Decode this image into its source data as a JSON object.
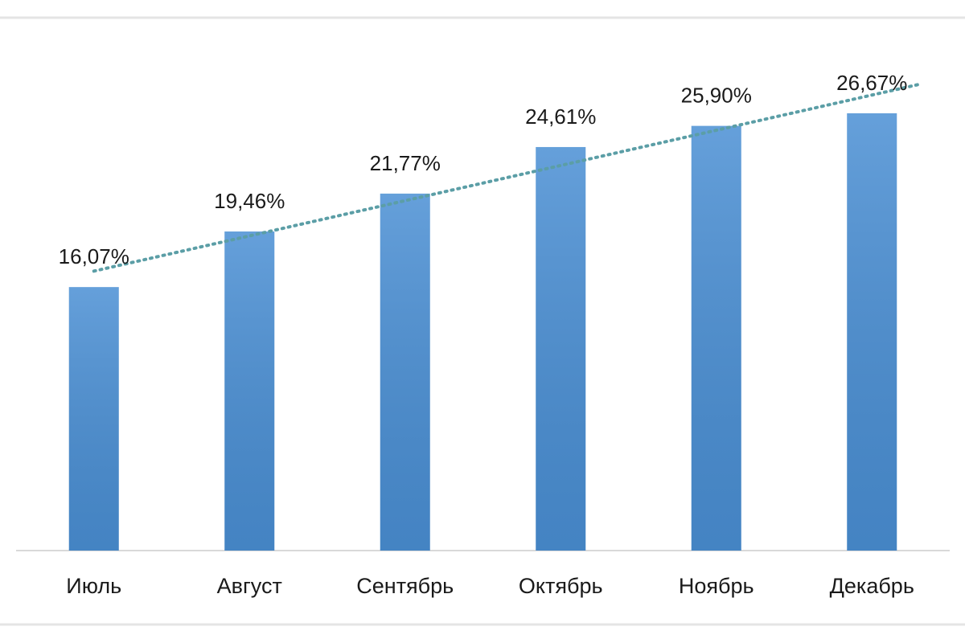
{
  "chart_data": {
    "type": "bar",
    "categories": [
      "Июль",
      "Август",
      "Сентябрь",
      "Октябрь",
      "Ноябрь",
      "Декабрь"
    ],
    "values": [
      16.07,
      19.46,
      21.77,
      24.61,
      25.9,
      26.67
    ],
    "value_labels": [
      "16,07%",
      "19,46%",
      "21,77%",
      "24,61%",
      "25,90%",
      "26,67%"
    ],
    "color": "#4a8fd4",
    "ylim": [
      0,
      30
    ],
    "trendline": true,
    "trendline_color": "#5b9ea6"
  }
}
